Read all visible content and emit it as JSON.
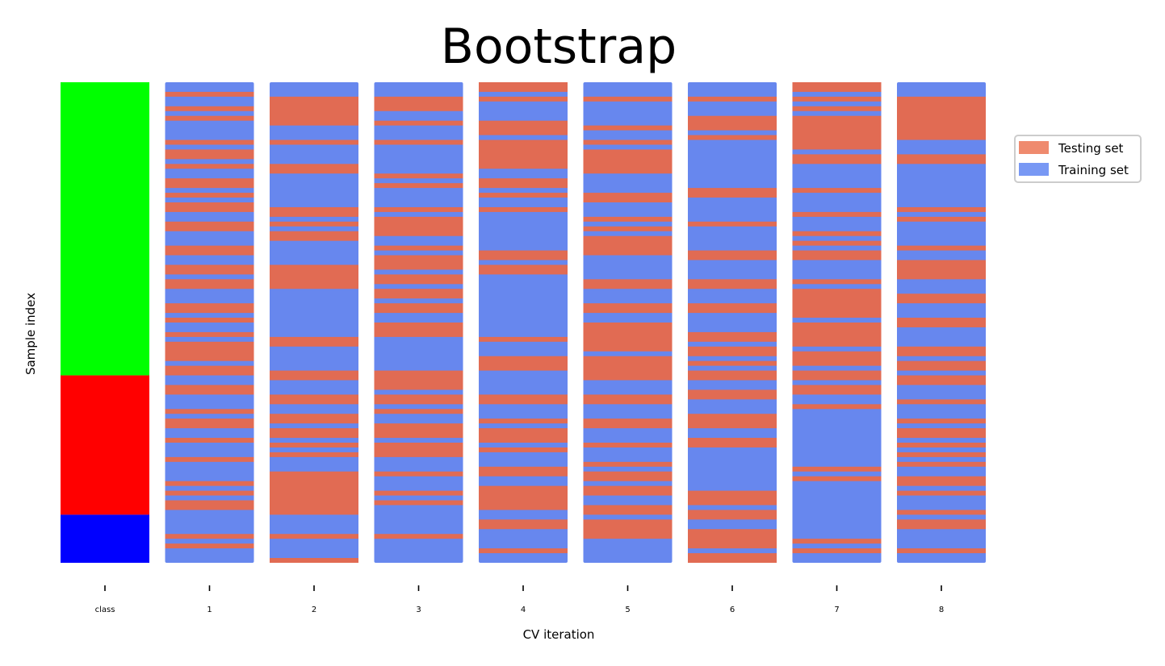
{
  "chart_data": {
    "type": "heatmap",
    "title": "Bootstrap",
    "xlabel": "CV iteration",
    "ylabel": "Sample index",
    "n_samples": 100,
    "categories": [
      "class",
      "1",
      "2",
      "3",
      "4",
      "5",
      "6",
      "7",
      "8"
    ],
    "class_groups": [
      {
        "start": 0,
        "end": 61,
        "color": "#00ff00"
      },
      {
        "start": 61,
        "end": 90,
        "color": "#ff0000"
      },
      {
        "start": 90,
        "end": 100,
        "color": "#0000ff"
      }
    ],
    "iterations": [
      {
        "name": "1",
        "test_indices": [
          2,
          5,
          7,
          12,
          14,
          15,
          17,
          20,
          21,
          23,
          25,
          26,
          29,
          30,
          34,
          35,
          38,
          39,
          41,
          42,
          46,
          47,
          49,
          52,
          54,
          55,
          56,
          57,
          59,
          60,
          63,
          64,
          68,
          70,
          71,
          74,
          78,
          83,
          85,
          87,
          88,
          94,
          96
        ]
      },
      {
        "name": "2",
        "test_indices": [
          3,
          4,
          5,
          6,
          7,
          8,
          12,
          17,
          18,
          26,
          27,
          29,
          31,
          32,
          38,
          39,
          40,
          41,
          42,
          53,
          54,
          60,
          61,
          65,
          66,
          69,
          70,
          72,
          73,
          75,
          77,
          81,
          82,
          83,
          84,
          85,
          86,
          87,
          88,
          89,
          94,
          99
        ]
      },
      {
        "name": "3",
        "test_indices": [
          3,
          4,
          5,
          8,
          12,
          19,
          21,
          26,
          28,
          29,
          30,
          31,
          34,
          36,
          37,
          38,
          40,
          41,
          43,
          44,
          46,
          47,
          50,
          51,
          52,
          60,
          61,
          62,
          63,
          65,
          66,
          68,
          71,
          72,
          73,
          75,
          76,
          77,
          81,
          85,
          87,
          94
        ]
      },
      {
        "name": "4",
        "test_indices": [
          0,
          1,
          3,
          8,
          9,
          10,
          12,
          13,
          14,
          15,
          16,
          17,
          20,
          21,
          23,
          26,
          35,
          36,
          38,
          39,
          53,
          57,
          58,
          59,
          65,
          66,
          70,
          72,
          73,
          74,
          76,
          80,
          81,
          84,
          85,
          86,
          87,
          88,
          91,
          92,
          97
        ]
      },
      {
        "name": "5",
        "test_indices": [
          3,
          9,
          12,
          14,
          15,
          16,
          17,
          18,
          23,
          24,
          28,
          30,
          32,
          33,
          34,
          35,
          41,
          42,
          46,
          47,
          50,
          51,
          52,
          53,
          54,
          55,
          57,
          58,
          59,
          60,
          61,
          65,
          66,
          70,
          71,
          75,
          79,
          81,
          82,
          84,
          85,
          88,
          89,
          91,
          92,
          93,
          94
        ]
      },
      {
        "name": "6",
        "test_indices": [
          3,
          7,
          8,
          9,
          11,
          22,
          23,
          29,
          35,
          36,
          41,
          42,
          46,
          47,
          52,
          53,
          55,
          56,
          58,
          60,
          61,
          64,
          65,
          69,
          70,
          71,
          74,
          75,
          85,
          86,
          87,
          89,
          90,
          93,
          94,
          95,
          96,
          98,
          99
        ]
      },
      {
        "name": "7",
        "test_indices": [
          0,
          1,
          3,
          5,
          7,
          8,
          9,
          10,
          11,
          12,
          13,
          15,
          16,
          22,
          27,
          31,
          33,
          35,
          36,
          41,
          43,
          44,
          45,
          46,
          47,
          48,
          50,
          51,
          52,
          53,
          54,
          56,
          57,
          58,
          60,
          61,
          63,
          64,
          67,
          80,
          82,
          95,
          97
        ]
      },
      {
        "name": "8",
        "test_indices": [
          3,
          4,
          5,
          6,
          7,
          8,
          9,
          10,
          11,
          15,
          16,
          26,
          28,
          34,
          37,
          38,
          39,
          40,
          44,
          45,
          49,
          50,
          55,
          56,
          58,
          59,
          61,
          62,
          66,
          70,
          72,
          73,
          75,
          77,
          79,
          82,
          83,
          85,
          89,
          91,
          92,
          97
        ]
      }
    ],
    "legend": {
      "placement": "upper-right, outside plot",
      "entries": [
        {
          "label": "Testing set",
          "color": "#e37055"
        },
        {
          "label": "Training set",
          "color": "#6889ee"
        }
      ]
    },
    "colors": {
      "testing": "#e16b53",
      "training": "#6787ee",
      "legend_testing": "#ef8a6e",
      "legend_training": "#7898f4"
    },
    "grid": false
  }
}
